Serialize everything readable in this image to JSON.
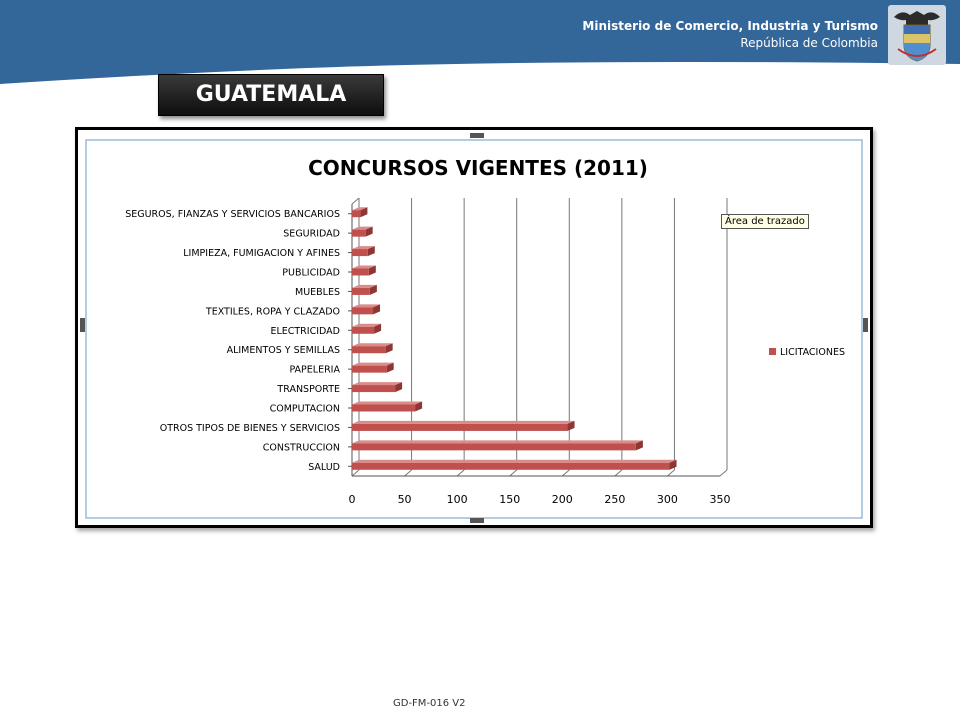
{
  "header": {
    "ministry_name": "Ministerio de Comercio, Industria y Turismo",
    "country": "República de Colombia",
    "band_color": "#336699"
  },
  "slide": {
    "country_title": "GUATEMALA",
    "tooltip": "Área de trazado",
    "footer_code": "GD-FM-016 V2"
  },
  "chart_data": {
    "type": "bar",
    "orientation": "horizontal",
    "style": "3d",
    "title": "CONCURSOS VIGENTES (2011)",
    "categories": [
      "SEGUROS, FIANZAS Y SERVICIOS BANCARIOS",
      "SEGURIDAD",
      "LIMPIEZA, FUMIGACION Y AFINES",
      "PUBLICIDAD",
      "MUEBLES",
      "TEXTILES, ROPA Y CLAZADO",
      "ELECTRICIDAD",
      "ALIMENTOS Y SEMILLAS",
      "PAPELERIA",
      "TRANSPORTE",
      "COMPUTACION",
      "OTROS TIPOS DE BIENES Y SERVICIOS",
      "CONSTRUCCION",
      "SALUD"
    ],
    "series": [
      {
        "name": "LICITACIONES",
        "values": [
          8,
          13,
          15,
          16,
          17,
          20,
          21,
          32,
          33,
          41,
          60,
          205,
          270,
          302
        ]
      }
    ],
    "xlim": [
      0,
      350
    ],
    "xticks": [
      0,
      50,
      100,
      150,
      200,
      250,
      300,
      350
    ],
    "grid": true,
    "legend": "right",
    "bar_color": "#c0504d"
  }
}
